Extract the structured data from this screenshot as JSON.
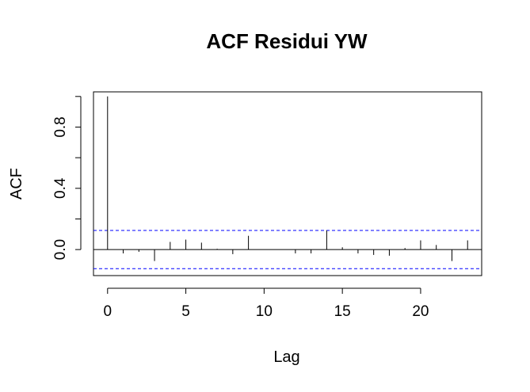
{
  "chart_data": {
    "type": "bar",
    "title": "ACF Residui YW",
    "xlabel": "Lag",
    "ylabel": "ACF",
    "xlim": [
      -0.9,
      23.9
    ],
    "ylim": [
      -0.17,
      1.03
    ],
    "x_ticks": [
      0,
      5,
      10,
      15,
      20
    ],
    "x_tick_labels": [
      "0",
      "5",
      "10",
      "15",
      "20"
    ],
    "y_ticks": [
      0.0,
      0.2,
      0.4,
      0.6,
      0.8,
      1.0
    ],
    "y_tick_labels": [
      "0.0",
      "",
      "0.4",
      "",
      "0.8",
      ""
    ],
    "confidence_bound": 0.125,
    "grid": false,
    "x": [
      0,
      1,
      2,
      3,
      4,
      5,
      6,
      7,
      8,
      9,
      10,
      11,
      12,
      13,
      14,
      15,
      16,
      17,
      18,
      19,
      20,
      21,
      22,
      23
    ],
    "values": [
      1.0,
      -0.025,
      -0.015,
      -0.075,
      0.05,
      0.065,
      0.045,
      0.005,
      -0.03,
      0.09,
      0.0,
      0.0,
      -0.025,
      -0.025,
      0.125,
      0.015,
      -0.025,
      -0.035,
      -0.04,
      0.01,
      0.06,
      0.03,
      -0.075,
      0.06
    ],
    "colors": {
      "line": "#000000",
      "bound": "#0000ff"
    }
  }
}
